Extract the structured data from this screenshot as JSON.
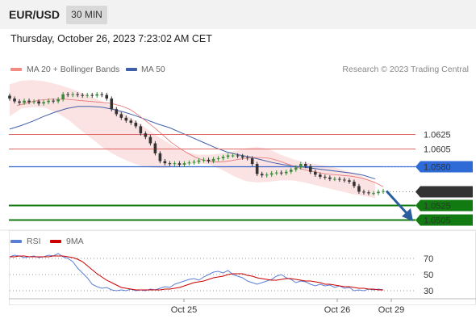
{
  "header": {
    "symbol": "EUR/USD",
    "timeframe": "30 MIN"
  },
  "datetime": "Thursday, October 26, 2023 7:23:02 AM CET",
  "legend": {
    "bollinger": {
      "label": "MA 20 + Bollinger Bands",
      "color": "#f28b82"
    },
    "ma50": {
      "label": "MA 50",
      "color": "#3f5fa8"
    },
    "rsi": {
      "label": "RSI",
      "color": "#5b7fd6"
    },
    "rsi_ma": {
      "label": "9MA",
      "color": "#cc0000"
    }
  },
  "copyright": "Research © 2023 Trading Central",
  "colors": {
    "up": "#3a8a3a",
    "down": "#333333",
    "support": "#117a11",
    "resistance": "#e06666",
    "pivot": "#3366cc",
    "current": "#333333",
    "arrow": "#2a5d9f",
    "band_fill": "#fbdede"
  },
  "chart_data": [
    {
      "type": "candlestick",
      "series": "EUR/USD 30 MIN",
      "y_range": [
        1.049,
        1.07
      ],
      "x_ticks": [
        "Oct 25",
        "Oct 26",
        "Oct 29"
      ],
      "price_levels": [
        {
          "label": "1.0625",
          "value": 1.0625,
          "kind": "resistance"
        },
        {
          "label": "1.0605",
          "value": 1.0605,
          "kind": "resistance"
        },
        {
          "label": "1.0580",
          "value": 1.058,
          "kind": "pivot"
        },
        {
          "label": "1.0545",
          "value": 1.0545,
          "kind": "current"
        },
        {
          "label": "1.0525",
          "value": 1.0525,
          "kind": "support"
        },
        {
          "label": "1.0505",
          "value": 1.0505,
          "kind": "support"
        }
      ],
      "closes": [
        1.0675,
        1.0671,
        1.0669,
        1.0672,
        1.067,
        1.0671,
        1.0668,
        1.067,
        1.0672,
        1.0671,
        1.0674,
        1.0681,
        1.068,
        1.0681,
        1.068,
        1.0679,
        1.068,
        1.0679,
        1.0681,
        1.068,
        1.0675,
        1.066,
        1.0653,
        1.0648,
        1.0644,
        1.0641,
        1.0636,
        1.0626,
        1.0621,
        1.0612,
        1.0598,
        1.0587,
        1.0584,
        1.0583,
        1.0584,
        1.0582,
        1.0584,
        1.0585,
        1.0586,
        1.0588,
        1.0589,
        1.0587,
        1.059,
        1.0591,
        1.0593,
        1.0595,
        1.0595,
        1.0594,
        1.0592,
        1.0591,
        1.0583,
        1.0569,
        1.0567,
        1.0568,
        1.057,
        1.0571,
        1.057,
        1.0572,
        1.0575,
        1.0578,
        1.0583,
        1.058,
        1.0572,
        1.0568,
        1.0565,
        1.0564,
        1.0562,
        1.0562,
        1.0561,
        1.056,
        1.0558,
        1.0552,
        1.0544,
        1.0543,
        1.0542,
        1.0542,
        1.0544,
        1.0545
      ],
      "ma20": [
        1.0665,
        1.0668,
        1.0671,
        1.0673,
        1.0674,
        1.0674,
        1.0674,
        1.0673,
        1.0672,
        1.0671,
        1.067,
        1.0669,
        1.0667,
        1.0664,
        1.0659,
        1.0651,
        1.0642,
        1.0633,
        1.0623,
        1.0613,
        1.0605,
        1.0598,
        1.0592,
        1.0588,
        1.0586,
        1.0586,
        1.0587,
        1.0589,
        1.0591,
        1.0592,
        1.0592,
        1.0591,
        1.0588,
        1.0584,
        1.058,
        1.0576,
        1.0573,
        1.0571,
        1.0569,
        1.0568,
        1.0567,
        1.0566,
        1.0564,
        1.0561,
        1.0557,
        1.0551
      ],
      "ma20_x_start": 9,
      "bb_upper": [
        1.0695,
        1.07,
        1.0701,
        1.0699,
        1.0695,
        1.069,
        1.0684,
        1.0677,
        1.067,
        1.0661,
        1.0651,
        1.064,
        1.0628,
        1.0617,
        1.0607,
        1.06,
        1.0596,
        1.0596,
        1.0598,
        1.0601,
        1.0605,
        1.0607,
        1.0604,
        1.0596,
        1.059,
        1.0585,
        1.0583,
        1.058,
        1.0576,
        1.0571,
        1.0565,
        1.0558
      ],
      "bb_lower": [
        1.065,
        1.0661,
        1.0663,
        1.0662,
        1.0655,
        1.0645,
        1.0631,
        1.0618,
        1.0605,
        1.0595,
        1.0587,
        1.0581,
        1.0578,
        1.0577,
        1.0579,
        1.0582,
        1.0584,
        1.0582,
        1.0575,
        1.0566,
        1.0559,
        1.0557,
        1.0558,
        1.056,
        1.056,
        1.0557,
        1.0553,
        1.0549,
        1.0545,
        1.0541,
        1.0538,
        1.0535
      ],
      "ma50": [
        1.0632,
        1.0637,
        1.0643,
        1.065,
        1.0656,
        1.0661,
        1.0664,
        1.0664,
        1.0663,
        1.066,
        1.0656,
        1.0651,
        1.0645,
        1.0639,
        1.0634,
        1.0627,
        1.062,
        1.0613,
        1.0606,
        1.06,
        1.0596,
        1.0593,
        1.0589,
        1.0585,
        1.0582,
        1.058,
        1.0578,
        1.0576,
        1.0574,
        1.0572,
        1.057,
        1.0567,
        1.0562
      ]
    },
    {
      "type": "line",
      "series": "RSI",
      "y_range": [
        22,
        78
      ],
      "y_ticks": [
        "70",
        "50",
        "30"
      ],
      "rsi": [
        72,
        74,
        73,
        71,
        72,
        73,
        71,
        72,
        74,
        73,
        76,
        72,
        70,
        66,
        58,
        52,
        46,
        38,
        35,
        33,
        34,
        31,
        30,
        31,
        30,
        32,
        30,
        31,
        30,
        32,
        31,
        33,
        35,
        34,
        38,
        40,
        42,
        44,
        45,
        43,
        47,
        50,
        53,
        54,
        52,
        55,
        50,
        48,
        46,
        42,
        40,
        38,
        40,
        42,
        44,
        48,
        50,
        46,
        44,
        40,
        42,
        41,
        38,
        36,
        38,
        36,
        37,
        34,
        36,
        33,
        34,
        30,
        31,
        30,
        32,
        31,
        32,
        31
      ],
      "rsi_ma": [
        72,
        72,
        73,
        73,
        72,
        72,
        72,
        72,
        72,
        73,
        73,
        73,
        72,
        71,
        69,
        66,
        61,
        56,
        51,
        47,
        43,
        40,
        37,
        34,
        33,
        32,
        31,
        31,
        31,
        31,
        31,
        31,
        32,
        32,
        33,
        34,
        36,
        38,
        40,
        41,
        42,
        44,
        46,
        47,
        48,
        50,
        51,
        51,
        51,
        49,
        48,
        46,
        45,
        44,
        43,
        43,
        44,
        45,
        45,
        44,
        43,
        42,
        42,
        41,
        40,
        38,
        38,
        37,
        36,
        35,
        35,
        34,
        33,
        33,
        32,
        32,
        31,
        31
      ]
    }
  ]
}
